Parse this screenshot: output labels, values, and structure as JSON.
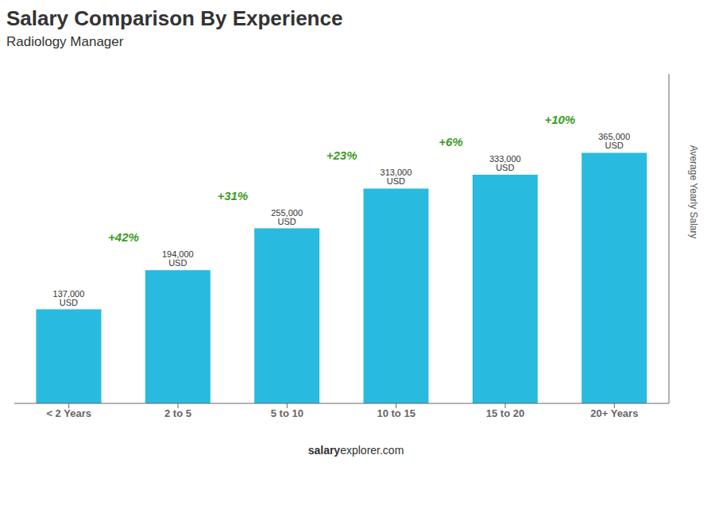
{
  "chart_data": {
    "type": "bar",
    "title": "Salary Comparison By Experience",
    "subtitle": "Radiology Manager",
    "ylabel": "Average Yearly Salary",
    "categories": [
      "< 2 Years",
      "2 to 5",
      "5 to 10",
      "10 to 15",
      "15 to 20",
      "20+ Years"
    ],
    "values": [
      137000,
      194000,
      255000,
      313000,
      333000,
      365000
    ],
    "value_labels": [
      "137,000 USD",
      "194,000 USD",
      "255,000 USD",
      "313,000 USD",
      "333,000 USD",
      "365,000 USD"
    ],
    "data_labels": true,
    "annotations": [
      "+42%",
      "+31%",
      "+23%",
      "+6%",
      "+10%"
    ],
    "footer": [
      "salary",
      "explorer.com"
    ],
    "color": "#29BADF",
    "ylim": [
      0,
      480000
    ],
    "tick_labels": "x",
    "grid": false
  }
}
